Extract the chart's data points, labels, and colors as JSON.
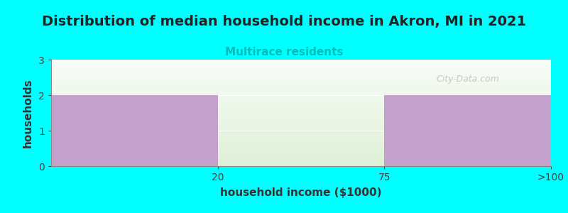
{
  "title": "Distribution of median household income in Akron, MI in 2021",
  "subtitle": "Multirace residents",
  "subtitle_color": "#00BBBB",
  "xlabel": "household income ($1000)",
  "ylabel": "households",
  "background_color": "#00FFFF",
  "plot_bg_color_top": "#F5FAF5",
  "plot_bg_color_bottom": "#E0EED8",
  "bar_color": "#C4A0CC",
  "categories": [
    "20",
    "75",
    ">100"
  ],
  "values": [
    2,
    0,
    2
  ],
  "ylim": [
    0,
    3
  ],
  "yticks": [
    0,
    1,
    2,
    3
  ],
  "title_fontsize": 14,
  "subtitle_fontsize": 11,
  "axis_label_fontsize": 11,
  "tick_fontsize": 10,
  "watermark": "City-Data.com",
  "watermark_color": "#AAAAAA"
}
